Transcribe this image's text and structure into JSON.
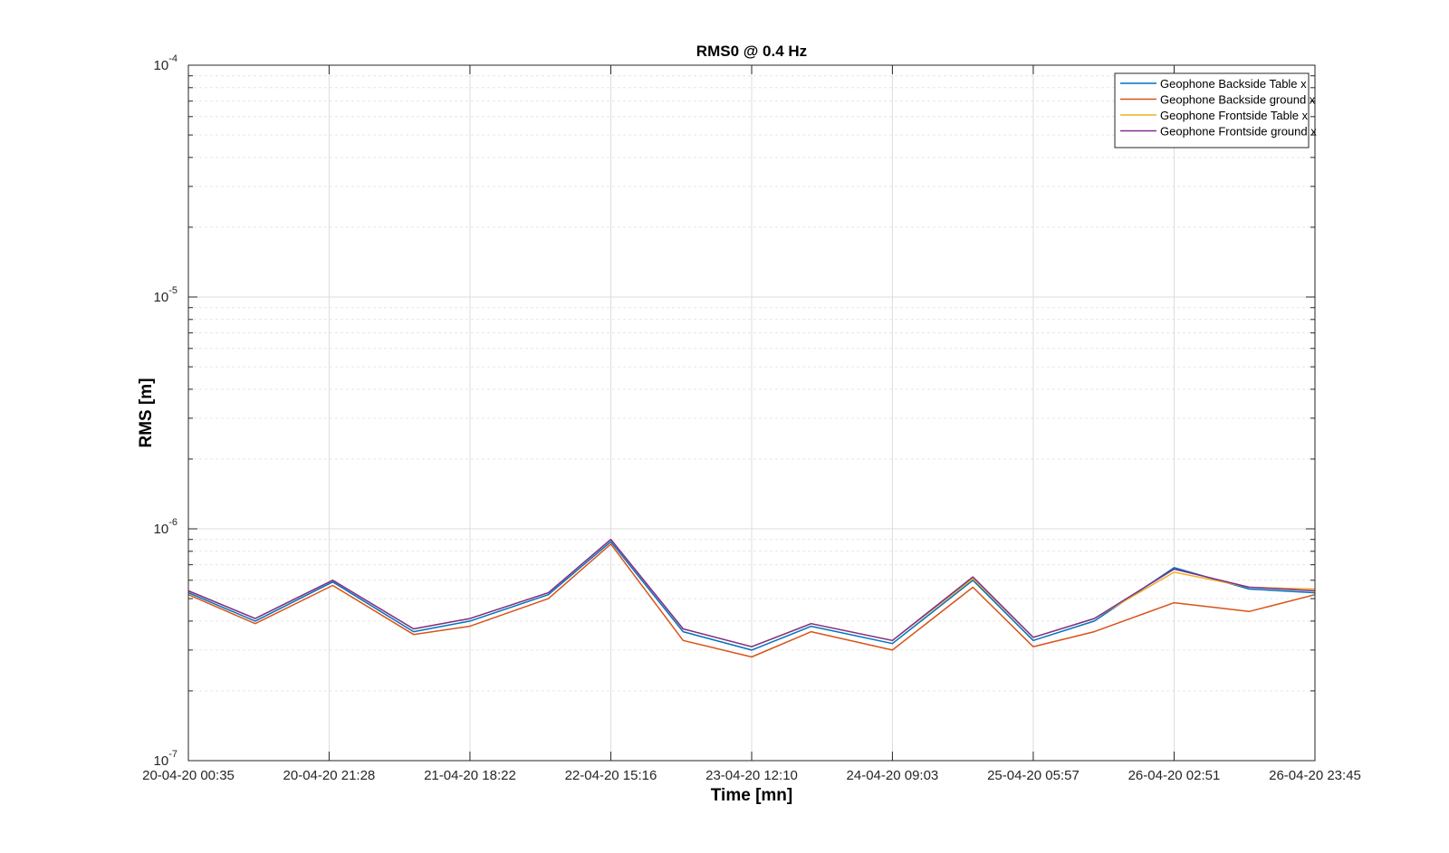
{
  "chart_data": {
    "type": "line",
    "title": "RMS0 @ 0.4 Hz",
    "xlabel": "Time [mn]",
    "ylabel": "RMS [m]",
    "y_scale": "log",
    "ylim": [
      1e-07,
      0.0001
    ],
    "grid": true,
    "minor_grid": true,
    "legend_position": "top-right",
    "x_range": [
      "20-04-20 00:35",
      "26-04-20 23:45"
    ],
    "x_tick_labels": [
      "20-04-20 00:35",
      "20-04-20 21:28",
      "21-04-20 18:22",
      "22-04-20 15:16",
      "23-04-20 12:10",
      "24-04-20 09:03",
      "25-04-20 05:57",
      "26-04-20 02:51",
      "26-04-20 23:45"
    ],
    "y_ticks": [
      {
        "base": "10",
        "exp": "-7",
        "value": 1e-07
      },
      {
        "base": "10",
        "exp": "-6",
        "value": 1e-06
      },
      {
        "base": "10",
        "exp": "-5",
        "value": 1e-05
      },
      {
        "base": "10",
        "exp": "-4",
        "value": 0.0001
      }
    ],
    "x": [
      "20-04-20 00:35",
      "20-04-20 10:30",
      "20-04-20 22:00",
      "21-04-20 10:00",
      "21-04-20 18:22",
      "22-04-20 06:00",
      "22-04-20 15:16",
      "23-04-20 02:00",
      "23-04-20 12:10",
      "23-04-20 21:00",
      "24-04-20 09:03",
      "24-04-20 21:00",
      "25-04-20 05:57",
      "25-04-20 15:00",
      "26-04-20 02:51",
      "26-04-20 14:00",
      "26-04-20 23:45"
    ],
    "series": [
      {
        "name": "Geophone Backside Table x",
        "color": "#0072BD",
        "values": [
          5.3e-07,
          4e-07,
          5.9e-07,
          3.6e-07,
          4e-07,
          5.2e-07,
          8.8e-07,
          3.6e-07,
          3e-07,
          3.8e-07,
          3.2e-07,
          6e-07,
          3.3e-07,
          4e-07,
          6.8e-07,
          5.5e-07,
          5.3e-07
        ]
      },
      {
        "name": "Geophone Backside ground x",
        "color": "#D95319",
        "values": [
          5.2e-07,
          3.9e-07,
          5.7e-07,
          3.5e-07,
          3.8e-07,
          5e-07,
          8.6e-07,
          3.3e-07,
          2.8e-07,
          3.6e-07,
          3e-07,
          5.6e-07,
          3.1e-07,
          3.6e-07,
          4.8e-07,
          4.4e-07,
          5.2e-07
        ]
      },
      {
        "name": "Geophone Frontside Table x",
        "color": "#EDB120",
        "values": [
          5.4e-07,
          4.1e-07,
          6e-07,
          3.7e-07,
          4.1e-07,
          5.3e-07,
          9e-07,
          3.7e-07,
          3.1e-07,
          3.9e-07,
          3.3e-07,
          6.1e-07,
          3.4e-07,
          4.1e-07,
          6.5e-07,
          5.6e-07,
          5.5e-07
        ]
      },
      {
        "name": "Geophone Frontside ground x",
        "color": "#7E2F8E",
        "values": [
          5.4e-07,
          4.1e-07,
          6e-07,
          3.7e-07,
          4.1e-07,
          5.3e-07,
          9e-07,
          3.7e-07,
          3.1e-07,
          3.9e-07,
          3.3e-07,
          6.2e-07,
          3.4e-07,
          4.1e-07,
          6.7e-07,
          5.6e-07,
          5.4e-07
        ]
      }
    ]
  }
}
